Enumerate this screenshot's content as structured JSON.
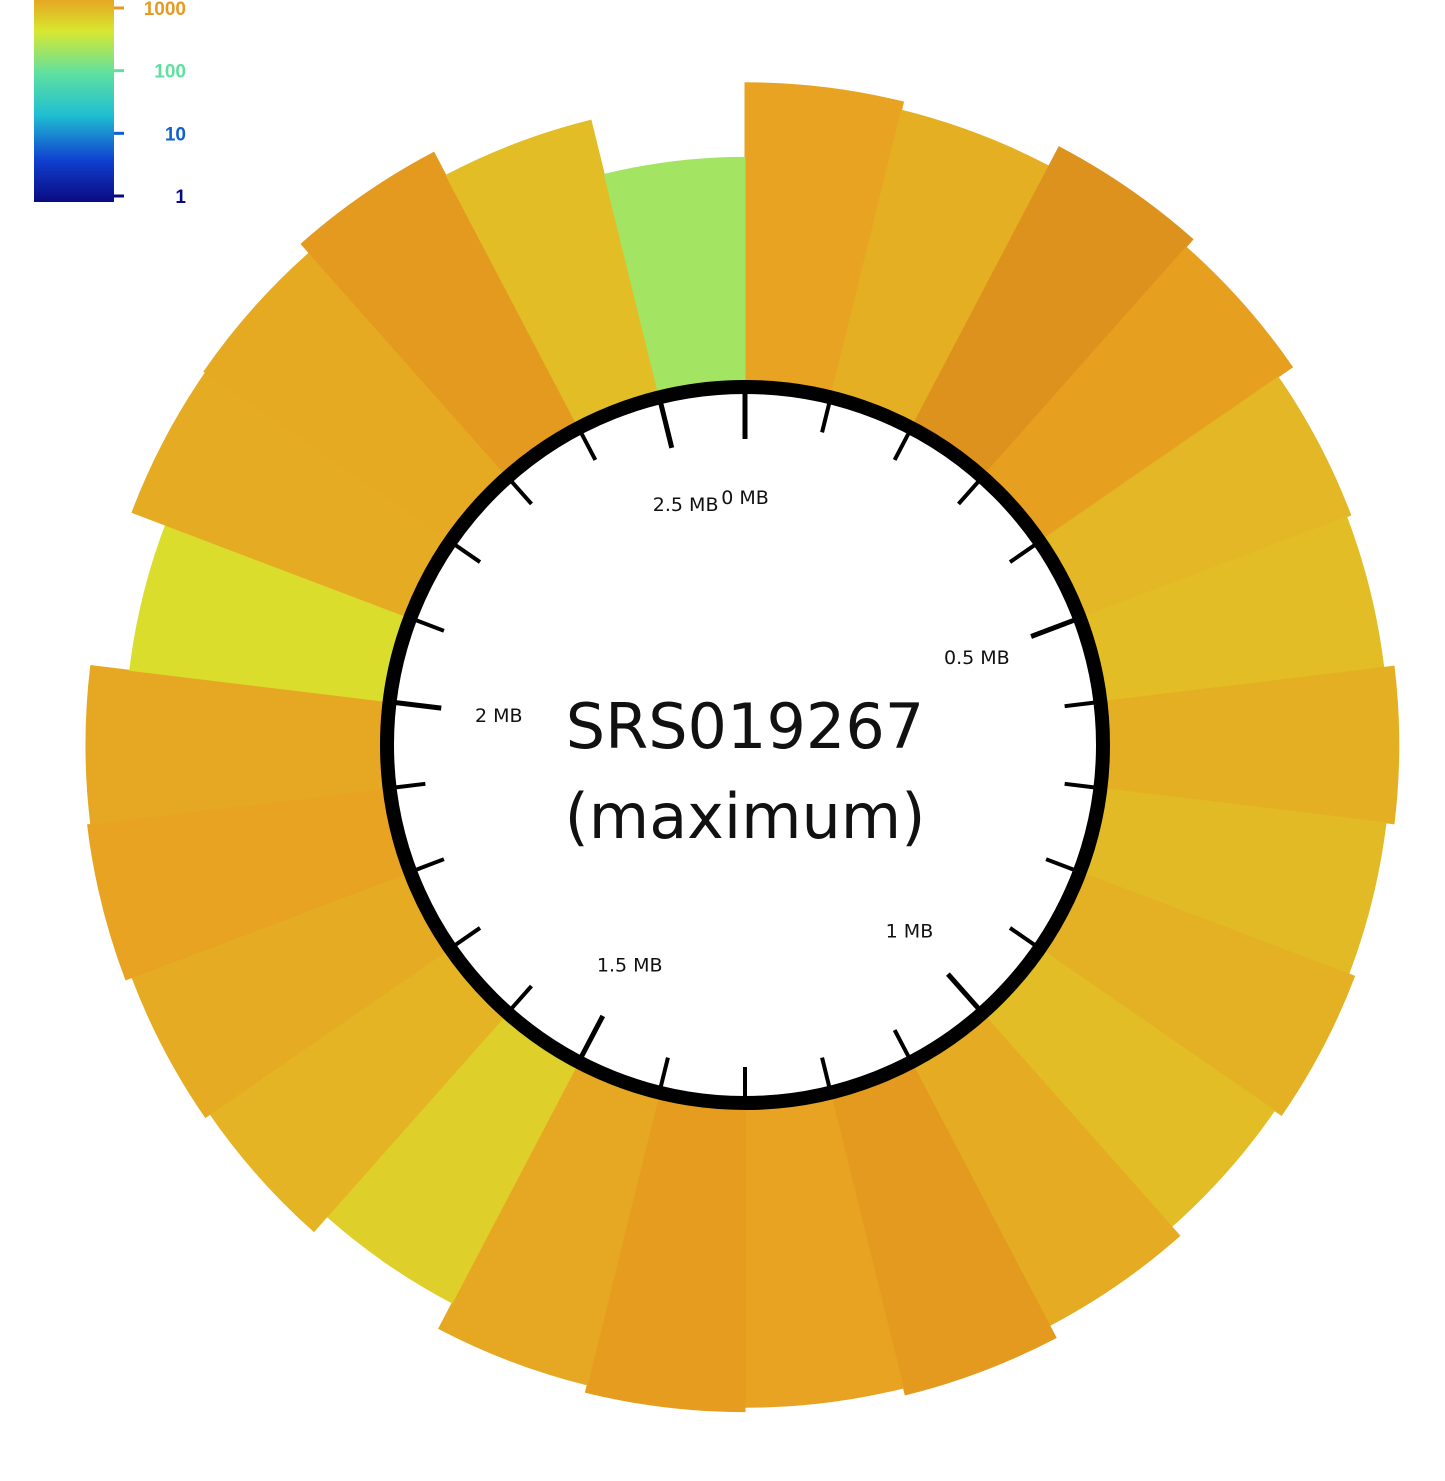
{
  "chart_data": {
    "type": "circular-coverage-plot",
    "title": "SRS019267",
    "subtitle": "(maximum)",
    "genome_length_mb": 2.6,
    "position_tick_labels": [
      "0 MB",
      "0.5 MB",
      "1 MB",
      "1.5 MB",
      "2 MB",
      "2.5 MB"
    ],
    "position_tick_values_mb": [
      0,
      0.5,
      1,
      1.5,
      2,
      2.5
    ],
    "color_scale": {
      "scale": "log",
      "range": [
        1,
        1000
      ],
      "tick_labels": [
        "1000",
        "100",
        "10",
        "1"
      ],
      "tick_values": [
        1000,
        100,
        10,
        1
      ],
      "colors": [
        "#0a0a80",
        "#1040d0",
        "#20c0d0",
        "#60e0a0",
        "#d8e830",
        "#e8a020",
        "#b05a10"
      ]
    },
    "coverage_bins": [
      {
        "start_mb": 0.0,
        "end_mb": 0.1,
        "coverage": 300
      },
      {
        "start_mb": 0.1,
        "end_mb": 0.2,
        "coverage": 250
      },
      {
        "start_mb": 0.2,
        "end_mb": 0.3,
        "coverage": 400
      },
      {
        "start_mb": 0.3,
        "end_mb": 0.4,
        "coverage": 320
      },
      {
        "start_mb": 0.4,
        "end_mb": 0.5,
        "coverage": 220
      },
      {
        "start_mb": 0.5,
        "end_mb": 0.6,
        "coverage": 200
      },
      {
        "start_mb": 0.6,
        "end_mb": 0.7,
        "coverage": 250
      },
      {
        "start_mb": 0.7,
        "end_mb": 0.8,
        "coverage": 210
      },
      {
        "start_mb": 0.8,
        "end_mb": 0.9,
        "coverage": 240
      },
      {
        "start_mb": 0.9,
        "end_mb": 1.0,
        "coverage": 200
      },
      {
        "start_mb": 1.0,
        "end_mb": 1.1,
        "coverage": 260
      },
      {
        "start_mb": 1.1,
        "end_mb": 1.2,
        "coverage": 350
      },
      {
        "start_mb": 1.2,
        "end_mb": 1.3,
        "coverage": 300
      },
      {
        "start_mb": 1.3,
        "end_mb": 1.4,
        "coverage": 330
      },
      {
        "start_mb": 1.4,
        "end_mb": 1.5,
        "coverage": 280
      },
      {
        "start_mb": 1.5,
        "end_mb": 1.6,
        "coverage": 150
      },
      {
        "start_mb": 1.6,
        "end_mb": 1.7,
        "coverage": 230
      },
      {
        "start_mb": 1.7,
        "end_mb": 1.8,
        "coverage": 260
      },
      {
        "start_mb": 1.8,
        "end_mb": 1.9,
        "coverage": 300
      },
      {
        "start_mb": 1.9,
        "end_mb": 2.0,
        "coverage": 280
      },
      {
        "start_mb": 2.0,
        "end_mb": 2.1,
        "coverage": 120
      },
      {
        "start_mb": 2.1,
        "end_mb": 2.2,
        "coverage": 260
      },
      {
        "start_mb": 2.2,
        "end_mb": 2.3,
        "coverage": 270
      },
      {
        "start_mb": 2.3,
        "end_mb": 2.4,
        "coverage": 350
      },
      {
        "start_mb": 2.4,
        "end_mb": 2.5,
        "coverage": 200
      },
      {
        "start_mb": 2.5,
        "end_mb": 2.6,
        "coverage": 60
      }
    ]
  }
}
